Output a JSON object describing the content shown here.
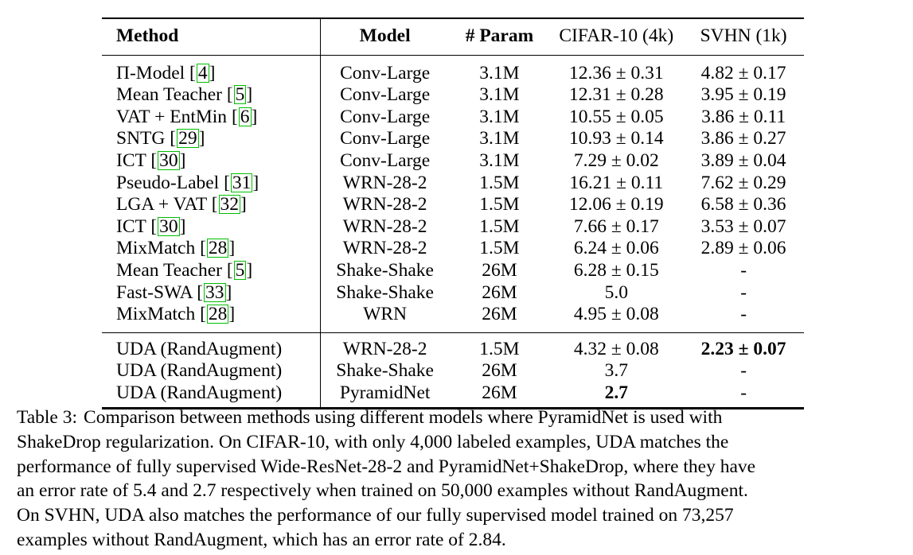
{
  "table": {
    "headers": {
      "method": "Method",
      "model": "Model",
      "param": "# Param",
      "cifar": "CIFAR-10 (4k)",
      "svhn": "SVHN (1k)"
    },
    "rows_group1": [
      {
        "method": "Π-Model",
        "cite": "4",
        "model": "Conv-Large",
        "param": "3.1M",
        "cifar": "12.36 ± 0.31",
        "svhn": "4.82 ± 0.17"
      },
      {
        "method": "Mean Teacher",
        "cite": "5",
        "model": "Conv-Large",
        "param": "3.1M",
        "cifar": "12.31 ± 0.28",
        "svhn": "3.95 ± 0.19"
      },
      {
        "method": "VAT + EntMin",
        "cite": "6",
        "model": "Conv-Large",
        "param": "3.1M",
        "cifar": "10.55 ± 0.05",
        "svhn": "3.86 ± 0.11"
      },
      {
        "method": "SNTG",
        "cite": "29",
        "model": "Conv-Large",
        "param": "3.1M",
        "cifar": "10.93 ± 0.14",
        "svhn": "3.86 ± 0.27"
      },
      {
        "method": "ICT",
        "cite": "30",
        "model": "Conv-Large",
        "param": "3.1M",
        "cifar": "7.29 ± 0.02",
        "svhn": "3.89 ± 0.04"
      },
      {
        "method": "Pseudo-Label",
        "cite": "31",
        "model": "WRN-28-2",
        "param": "1.5M",
        "cifar": "16.21 ± 0.11",
        "svhn": "7.62 ± 0.29"
      },
      {
        "method": "LGA + VAT",
        "cite": "32",
        "model": "WRN-28-2",
        "param": "1.5M",
        "cifar": "12.06 ± 0.19",
        "svhn": "6.58 ± 0.36"
      },
      {
        "method": "ICT",
        "cite": "30",
        "model": "WRN-28-2",
        "param": "1.5M",
        "cifar": "7.66 ± 0.17",
        "svhn": "3.53 ± 0.07"
      },
      {
        "method": "MixMatch",
        "cite": "28",
        "model": "WRN-28-2",
        "param": "1.5M",
        "cifar": "6.24 ± 0.06",
        "svhn": "2.89 ± 0.06"
      },
      {
        "method": "Mean Teacher",
        "cite": "5",
        "model": "Shake-Shake",
        "param": "26M",
        "cifar": "6.28 ± 0.15",
        "svhn": "-"
      },
      {
        "method": "Fast-SWA",
        "cite": "33",
        "model": "Shake-Shake",
        "param": "26M",
        "cifar": "5.0",
        "svhn": "-"
      },
      {
        "method": "MixMatch",
        "cite": "28",
        "model": "WRN",
        "param": "26M",
        "cifar": "4.95 ± 0.08",
        "svhn": "-"
      }
    ],
    "rows_group2": [
      {
        "method": "UDA (RandAugment)",
        "model": "WRN-28-2",
        "param": "1.5M",
        "cifar": "4.32 ± 0.08",
        "svhn": "2.23 ± 0.07"
      },
      {
        "method": "UDA (RandAugment)",
        "model": "Shake-Shake",
        "param": "26M",
        "cifar": "3.7",
        "svhn": "-"
      },
      {
        "method": "UDA (RandAugment)",
        "model": "PyramidNet",
        "param": "26M",
        "cifar": "2.7",
        "svhn": "-"
      }
    ]
  },
  "caption": {
    "label": "Table 3:",
    "line1": "Comparison between methods using different models where PyramidNet is used with",
    "line2": "ShakeDrop regularization.  On CIFAR-10, with only 4,000 labeled examples, UDA matches the",
    "line3": "performance of fully supervised Wide-ResNet-28-2 and PyramidNet+ShakeDrop, where they have",
    "line4": "an error rate of 5.4 and 2.7 respectively when trained on 50,000 examples without RandAugment.",
    "line5": "On SVHN, UDA also matches the performance of our fully supervised model trained on 73,257",
    "line6": "examples without RandAugment, which has an error rate of 2.84."
  }
}
